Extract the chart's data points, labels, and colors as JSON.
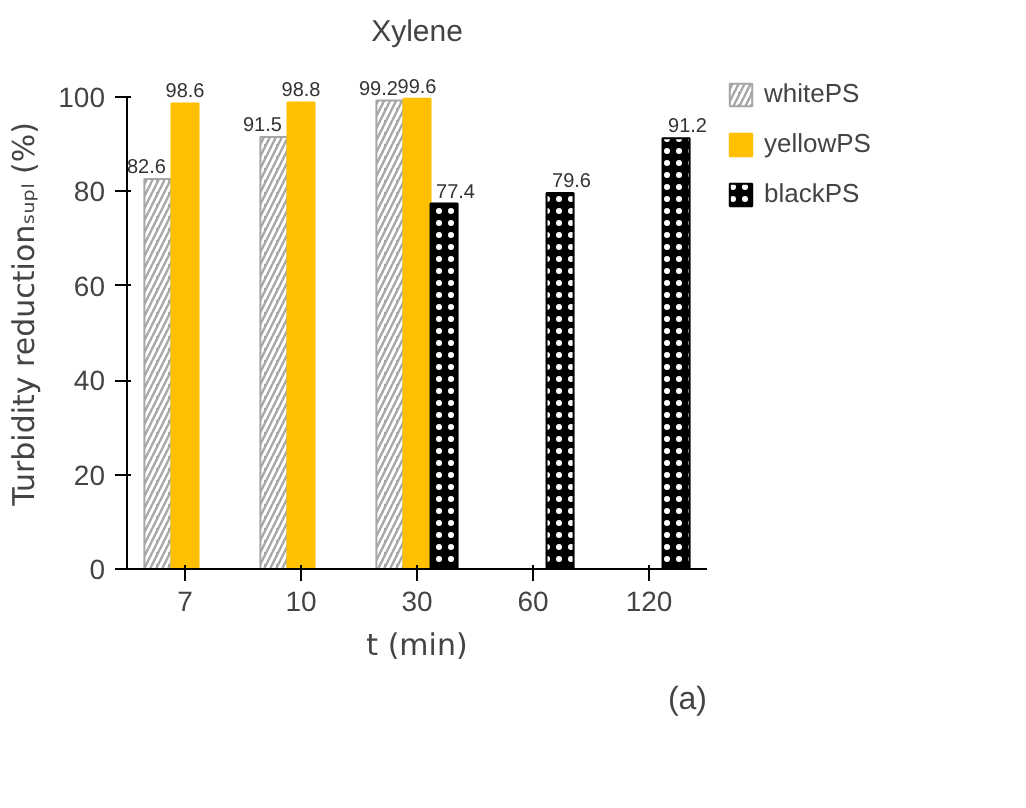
{
  "chart_data": {
    "type": "bar",
    "title": "Xylene",
    "xlabel": "t (min)",
    "ylabel": "Turbidity reductionₛᵤₚₗ (%)",
    "categories": [
      "7",
      "10",
      "30",
      "60",
      "120"
    ],
    "series": [
      {
        "name": "whitePS",
        "color": "#a6a6a6",
        "values": [
          82.6,
          91.5,
          99.2,
          null,
          null
        ]
      },
      {
        "name": "yellowPS",
        "color": "#ffc000",
        "values": [
          98.6,
          98.8,
          99.6,
          null,
          null
        ]
      },
      {
        "name": "blackPS",
        "color": "#000000",
        "values": [
          null,
          null,
          77.4,
          79.6,
          91.2
        ]
      }
    ],
    "ylim": [
      0,
      100
    ],
    "yticks": [
      0,
      20,
      40,
      60,
      80,
      100
    ],
    "grid": false,
    "legend": "right",
    "data_labels": true,
    "annotations": [
      "(a)"
    ]
  }
}
